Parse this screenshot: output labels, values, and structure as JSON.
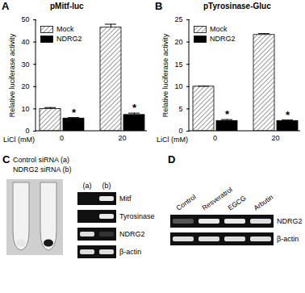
{
  "chart_data": [
    {
      "type": "bar",
      "panel": "A",
      "title": "pMitf-luc",
      "y_label": "Relative luciferase activity",
      "x_label": "LiCl (mM)",
      "categories": [
        "0",
        "20"
      ],
      "series": [
        {
          "name": "Mock",
          "color": "#808080",
          "values": [
            10,
            46.5
          ],
          "errors": [
            0.6,
            1.5
          ]
        },
        {
          "name": "NDRG2",
          "color": "#000000",
          "values": [
            5.7,
            7.3
          ],
          "errors": [
            0.4,
            0.8
          ]
        }
      ],
      "ylim": [
        0,
        50
      ],
      "yticks": [
        0,
        10,
        20,
        30,
        40,
        50
      ],
      "legend": "top-left",
      "annotations": [
        {
          "text": "*",
          "category": "0",
          "series": "NDRG2"
        },
        {
          "text": "*",
          "category": "20",
          "series": "NDRG2"
        }
      ]
    },
    {
      "type": "bar",
      "panel": "B",
      "title": "pTyrosinase-Gluc",
      "y_label": "Relative luciferase activity",
      "x_label": "LiCl (mM)",
      "categories": [
        "0",
        "20"
      ],
      "series": [
        {
          "name": "Mock",
          "color": "#808080",
          "values": [
            10,
            21.6
          ],
          "errors": [
            0.1,
            0.3
          ]
        },
        {
          "name": "NDRG2",
          "color": "#000000",
          "values": [
            2.3,
            2.3
          ],
          "errors": [
            0.3,
            0.2
          ]
        }
      ],
      "ylim": [
        0,
        25
      ],
      "yticks": [
        0,
        5,
        10,
        15,
        20,
        25
      ],
      "legend": "top-left",
      "annotations": [
        {
          "text": "*",
          "category": "0",
          "series": "NDRG2"
        },
        {
          "text": "*",
          "category": "20",
          "series": "NDRG2"
        }
      ]
    }
  ],
  "gels": [
    {
      "panel": "C",
      "tubes": {
        "labels": [
          "Control siRNA (a)",
          "NDRG2 siRNA (b)"
        ],
        "colors": [
          "#e6e6e6",
          "#1a1a1a"
        ]
      },
      "lanes": [
        "(a)",
        "(b)"
      ],
      "rows": [
        {
          "label": "Mitf",
          "intensity": [
            0,
            0.95
          ]
        },
        {
          "label": "Tyrosinase",
          "intensity": [
            0,
            0.95
          ]
        },
        {
          "label": "NDRG2",
          "intensity": [
            0.9,
            0.15
          ]
        },
        {
          "label": "β-actin",
          "intensity": [
            0.9,
            0.9
          ]
        }
      ]
    },
    {
      "panel": "D",
      "lanes": [
        "Control",
        "Resveratrol",
        "EGCG",
        "Arbutin"
      ],
      "rows": [
        {
          "label": "NDRG2",
          "intensity": [
            0.3,
            0.95,
            0.95,
            0.9
          ]
        },
        {
          "label": "β-actin",
          "intensity": [
            0.9,
            0.9,
            0.9,
            0.9
          ]
        }
      ]
    }
  ]
}
